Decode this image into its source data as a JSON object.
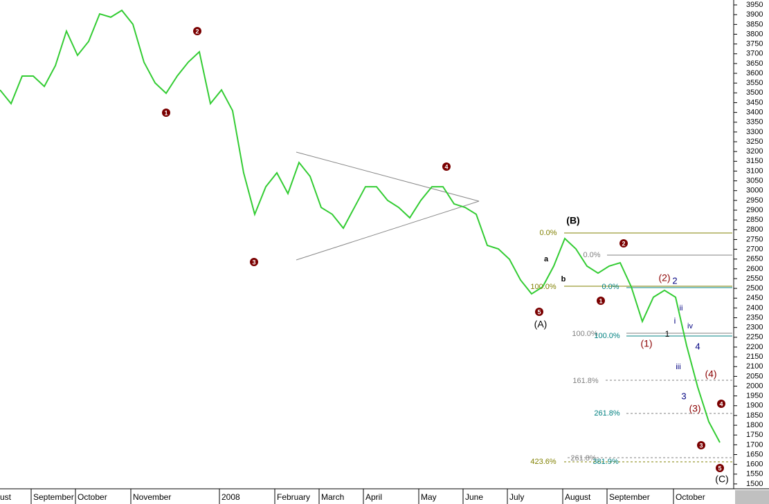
{
  "chart_data": {
    "type": "line",
    "categories": [
      "ust",
      null,
      null,
      "September",
      null,
      null,
      null,
      "October",
      null,
      null,
      null,
      null,
      "November",
      null,
      null,
      null,
      null,
      null,
      null,
      null,
      "2008",
      null,
      null,
      null,
      null,
      "February",
      null,
      null,
      null,
      "March",
      null,
      null,
      null,
      "April",
      null,
      null,
      null,
      null,
      "May",
      null,
      null,
      null,
      "June",
      null,
      null,
      null,
      "July",
      null,
      null,
      null,
      null,
      "August",
      null,
      null,
      null,
      "September",
      null,
      null,
      null,
      null,
      null,
      "October",
      null,
      null,
      null,
      null
    ],
    "series": [
      {
        "color": "#33cc33",
        "values": [
          3515,
          3445,
          3586,
          3586,
          3533,
          3639,
          3816,
          3692,
          3763,
          3904,
          3887,
          3922,
          3851,
          3657,
          3551,
          3498,
          3586,
          3657,
          3710,
          3445,
          3515,
          3409,
          3091,
          2879,
          3020,
          3091,
          2985,
          3144,
          3073,
          2914,
          2879,
          2808,
          2914,
          3020,
          3020,
          2950,
          2914,
          2861,
          2950,
          3020,
          3020,
          2932,
          2914,
          2879,
          2720,
          2702,
          2649,
          2543,
          2472,
          2508,
          2614,
          2755,
          2702,
          2614,
          2578,
          2614,
          2631,
          2508,
          2331,
          2455,
          2490,
          2455,
          2207,
          1995,
          1818,
          1712
        ]
      }
    ],
    "ylim": [
      1475,
      3975
    ],
    "yticks": [
      1500,
      1550,
      1600,
      1650,
      1700,
      1750,
      1800,
      1850,
      1900,
      1950,
      2000,
      2050,
      2100,
      2150,
      2200,
      2250,
      2300,
      2350,
      2400,
      2450,
      2500,
      2550,
      2600,
      2650,
      2700,
      2750,
      2800,
      2850,
      2900,
      2950,
      3000,
      3050,
      3100,
      3150,
      3200,
      3250,
      3300,
      3350,
      3400,
      3450,
      3500,
      3550,
      3600,
      3650,
      3700,
      3750,
      3800,
      3850,
      3900,
      3950
    ],
    "wave_markers": [
      "1",
      "2",
      "3",
      "4",
      "5",
      "1",
      "2",
      "3",
      "4",
      "5"
    ],
    "annotations": [
      "(B)",
      "(A)",
      "a",
      "b",
      "(C)",
      "0.0%",
      "100.0%",
      "0.0%",
      "0.0%",
      "100.0%",
      "100.0%",
      "161.8%",
      "261.8%",
      "261.8%",
      "381.9%",
      "423.6%",
      "(1)",
      "(2)",
      "2",
      "i",
      "ii",
      "iv",
      "1",
      "iii",
      "4",
      "(4)",
      "3",
      "(3)"
    ]
  }
}
